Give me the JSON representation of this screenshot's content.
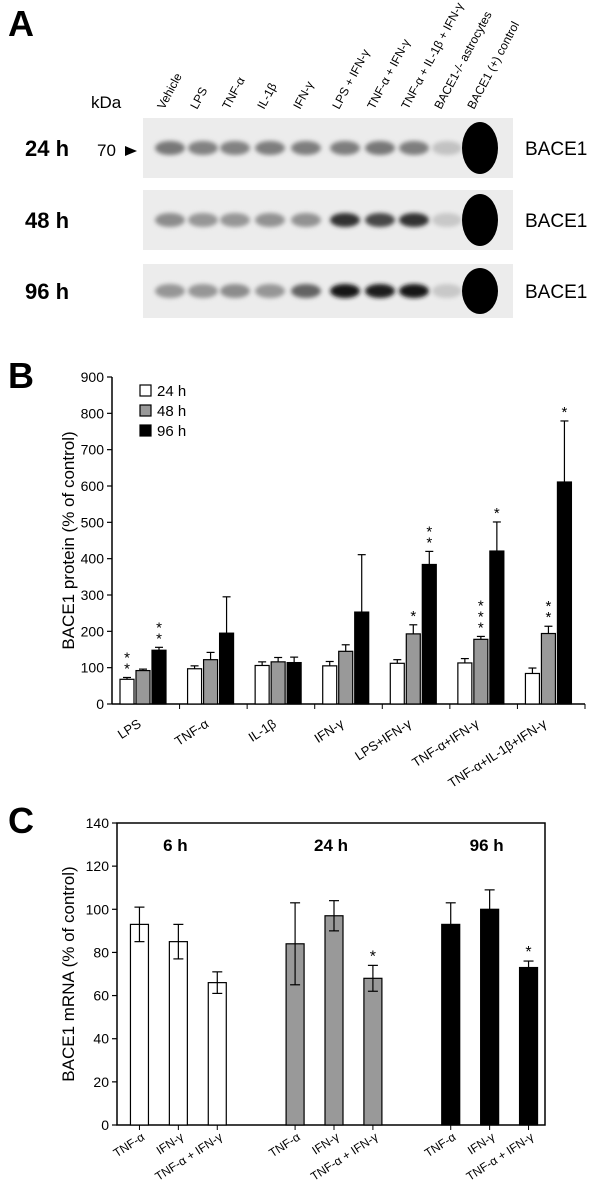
{
  "panel_a": {
    "letter": "A",
    "kda_label": "kDa",
    "marker_label": "70",
    "protein_label": "BACE1",
    "lanes": [
      "Vehicle",
      "LPS",
      "TNF-α",
      "IL-1β",
      "IFN-γ",
      "LPS + IFN-γ",
      "TNF-α + IFN-γ",
      "TNF-α + IL-1β + IFN-γ",
      "BACE1-/- astrocytes",
      "BACE1 (+) control"
    ],
    "rows": [
      {
        "time": "24 h",
        "band_intensity": [
          0.45,
          0.4,
          0.4,
          0.42,
          0.42,
          0.42,
          0.45,
          0.42,
          0.08,
          1.0
        ]
      },
      {
        "time": "48 h",
        "band_intensity": [
          0.35,
          0.3,
          0.3,
          0.32,
          0.32,
          0.8,
          0.7,
          0.8,
          0.05,
          1.0
        ]
      },
      {
        "time": "96 h",
        "band_intensity": [
          0.3,
          0.3,
          0.35,
          0.3,
          0.55,
          0.95,
          0.9,
          0.95,
          0.05,
          1.0
        ]
      }
    ]
  },
  "chart_data": [
    {
      "panel": "B",
      "type": "bar",
      "ylabel": "BACE1 protein (% of control)",
      "ylim": [
        0,
        900
      ],
      "yticks": [
        0,
        100,
        200,
        300,
        400,
        500,
        600,
        700,
        800,
        900
      ],
      "categories": [
        "LPS",
        "TNF-α",
        "IL-1β",
        "IFN-γ",
        "LPS+IFN-γ",
        "TNF-α+IFN-γ",
        "TNF-α+IL-1β+IFN-γ"
      ],
      "legend": {
        "position": "top-left"
      },
      "series": [
        {
          "name": "24 h",
          "color": "#ffffff",
          "values": [
            68,
            97,
            106,
            105,
            112,
            113,
            84
          ],
          "errors": [
            5,
            8,
            10,
            12,
            10,
            12,
            15
          ],
          "stars": [
            "**",
            "",
            "",
            "",
            "",
            "",
            ""
          ]
        },
        {
          "name": "48 h",
          "color": "#999999",
          "values": [
            92,
            122,
            116,
            145,
            193,
            178,
            194
          ],
          "errors": [
            4,
            20,
            12,
            18,
            25,
            8,
            20
          ],
          "stars": [
            "",
            "",
            "",
            "",
            "*",
            "***",
            "**"
          ]
        },
        {
          "name": "96 h",
          "color": "#000000",
          "values": [
            148,
            195,
            114,
            253,
            384,
            421,
            611
          ],
          "errors": [
            8,
            100,
            15,
            158,
            36,
            80,
            168
          ],
          "stars": [
            "**",
            "",
            "",
            "",
            "**",
            "*",
            "*"
          ]
        }
      ]
    },
    {
      "panel": "C",
      "type": "bar",
      "ylabel": "BACE1 mRNA (% of control)",
      "ylim": [
        0,
        140
      ],
      "yticks": [
        0,
        20,
        40,
        60,
        80,
        100,
        120,
        140
      ],
      "groups": [
        {
          "title": "6 h",
          "color": "#ffffff",
          "categories": [
            "TNF-α",
            "IFN-γ",
            "TNF-α + IFN-γ"
          ],
          "values": [
            93,
            85,
            66
          ],
          "errors": [
            8,
            8,
            5
          ],
          "stars": [
            "",
            "",
            ""
          ]
        },
        {
          "title": "24 h",
          "color": "#999999",
          "categories": [
            "TNF-α",
            "IFN-γ",
            "TNF-α + IFN-γ"
          ],
          "values": [
            84,
            97,
            68
          ],
          "errors": [
            19,
            7,
            6
          ],
          "stars": [
            "",
            "",
            "*"
          ]
        },
        {
          "title": "96 h",
          "color": "#000000",
          "categories": [
            "TNF-α",
            "IFN-γ",
            "TNF-α + IFN-γ"
          ],
          "values": [
            93,
            100,
            73
          ],
          "errors": [
            10,
            9,
            3
          ],
          "stars": [
            "",
            "",
            "*"
          ]
        }
      ]
    }
  ],
  "panel_b": {
    "letter": "B"
  },
  "panel_c": {
    "letter": "C"
  }
}
